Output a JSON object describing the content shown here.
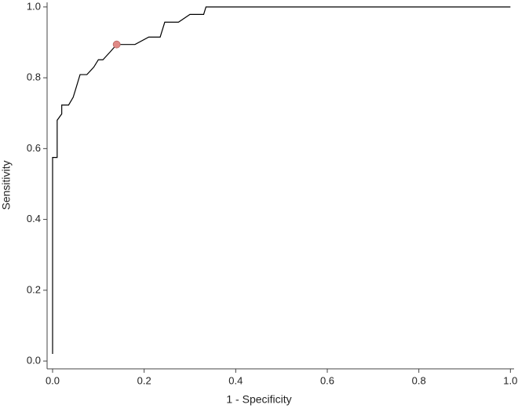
{
  "chart_data": {
    "type": "line",
    "xlabel": "1 - Specificity",
    "ylabel": "Sensitivity",
    "x": [
      0,
      0,
      0.01,
      0.01,
      0.02,
      0.02,
      0.035,
      0.045,
      0.05,
      0.06,
      0.075,
      0.09,
      0.1,
      0.11,
      0.125,
      0.14,
      0.18,
      0.21,
      0.235,
      0.245,
      0.275,
      0.3,
      0.33,
      0.335,
      1.0
    ],
    "series": [
      {
        "color": "#000000",
        "values": [
          0.02,
          0.575,
          0.575,
          0.68,
          0.698,
          0.723,
          0.723,
          0.745,
          0.766,
          0.809,
          0.809,
          0.83,
          0.851,
          0.851,
          0.872,
          0.894,
          0.894,
          0.915,
          0.915,
          0.957,
          0.957,
          0.979,
          0.979,
          1.0,
          1.0
        ]
      }
    ],
    "highlight": {
      "x": 0.14,
      "y": 0.894,
      "color": "#e08a86"
    },
    "xlim": [
      -0.012,
      1.008
    ],
    "ylim": [
      -0.022,
      1.013
    ],
    "xticks": [
      {
        "value": 0,
        "label": "0.0"
      },
      0.2,
      0.4,
      0.6,
      0.8,
      {
        "value": 1,
        "label": "1.0"
      }
    ],
    "yticks": [
      {
        "value": 0,
        "label": "0.0"
      },
      0.2,
      0.4,
      0.6,
      0.8,
      {
        "value": 1,
        "label": "1.0"
      }
    ]
  }
}
